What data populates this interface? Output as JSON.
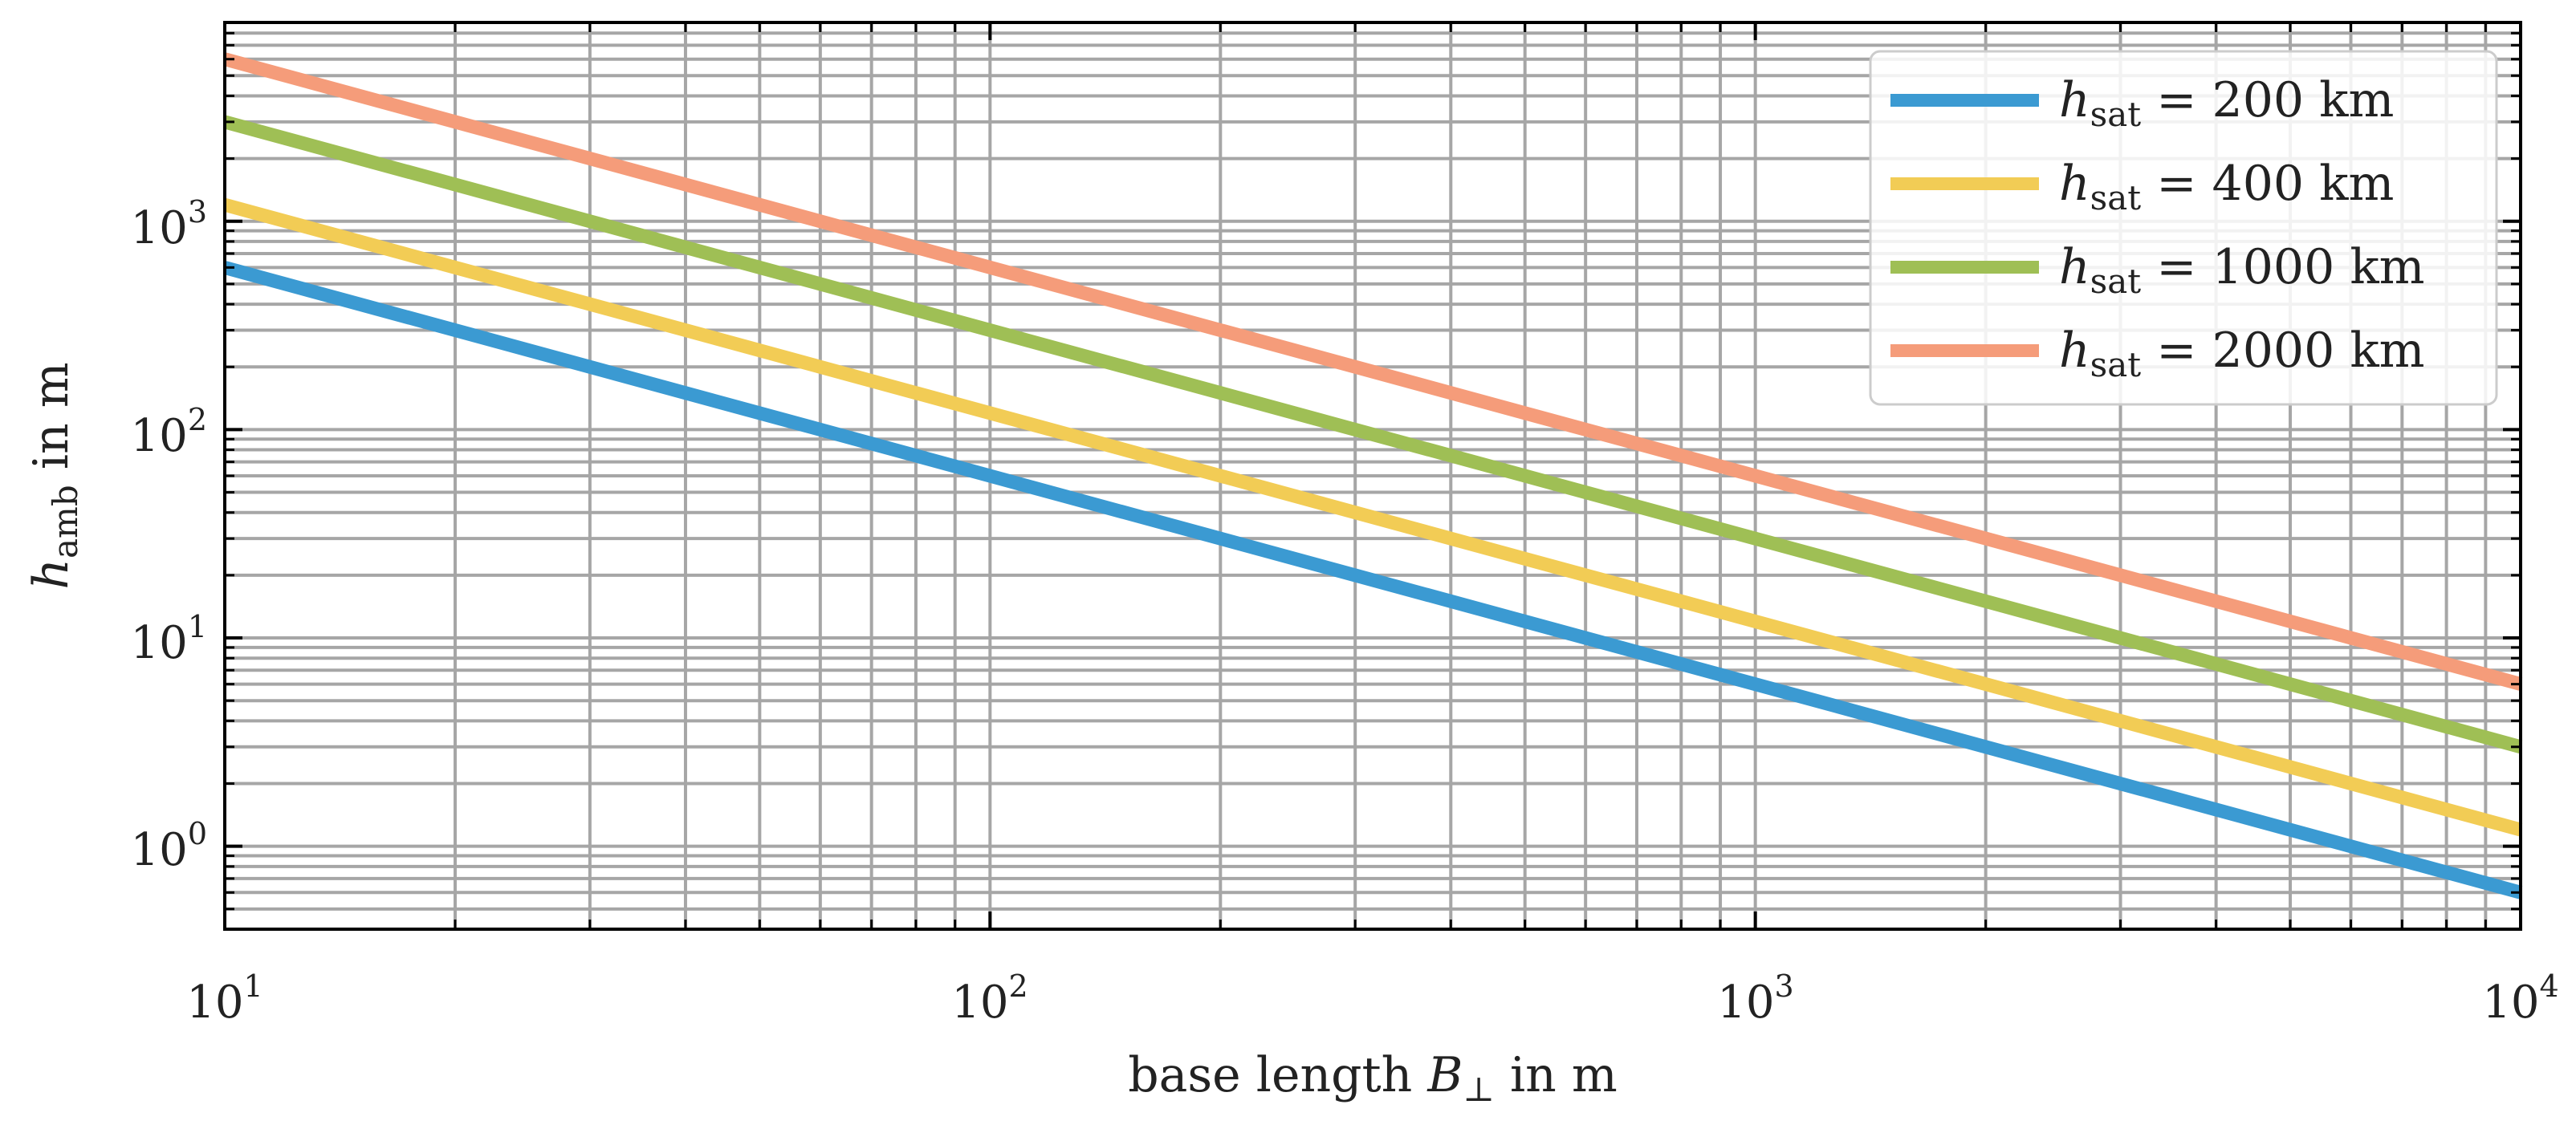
{
  "chart_data": {
    "type": "line",
    "scale": {
      "x": "log",
      "y": "log"
    },
    "xlim": [
      10,
      10000
    ],
    "ylim": [
      0.4,
      9000
    ],
    "grid": true,
    "legend_position": "top-right",
    "title": "",
    "xlabel": {
      "prefix": "base length ",
      "var": "B",
      "sub": "⊥",
      "suffix": " in m"
    },
    "ylabel": {
      "var": "h",
      "sub": "amb",
      "suffix": " in m"
    },
    "x_ticks": [
      {
        "base": "10",
        "exp": "1",
        "value": 10
      },
      {
        "base": "10",
        "exp": "2",
        "value": 100
      },
      {
        "base": "10",
        "exp": "3",
        "value": 1000
      },
      {
        "base": "10",
        "exp": "4",
        "value": 10000
      }
    ],
    "y_ticks": [
      {
        "base": "10",
        "exp": "0",
        "value": 1
      },
      {
        "base": "10",
        "exp": "1",
        "value": 10
      },
      {
        "base": "10",
        "exp": "2",
        "value": 100
      },
      {
        "base": "10",
        "exp": "3",
        "value": 1000
      }
    ],
    "series": [
      {
        "name": "h_sat = 200 km",
        "var": "h",
        "sub": "sat",
        "eq": " = 200 km",
        "color": "#3b9ad2",
        "x": [
          10,
          10000
        ],
        "y": [
          600,
          0.6
        ]
      },
      {
        "name": "h_sat = 400 km",
        "var": "h",
        "sub": "sat",
        "eq": " = 400 km",
        "color": "#f2cc55",
        "x": [
          10,
          10000
        ],
        "y": [
          1200,
          1.2
        ]
      },
      {
        "name": "h_sat = 1000 km",
        "var": "h",
        "sub": "sat",
        "eq": " = 1000 km",
        "color": "#9fbf55",
        "x": [
          10,
          10000
        ],
        "y": [
          3000,
          3.0
        ]
      },
      {
        "name": "h_sat = 2000 km",
        "var": "h",
        "sub": "sat",
        "eq": " = 2000 km",
        "color": "#f59c7a",
        "x": [
          10,
          10000
        ],
        "y": [
          6000,
          6.0
        ]
      }
    ]
  }
}
